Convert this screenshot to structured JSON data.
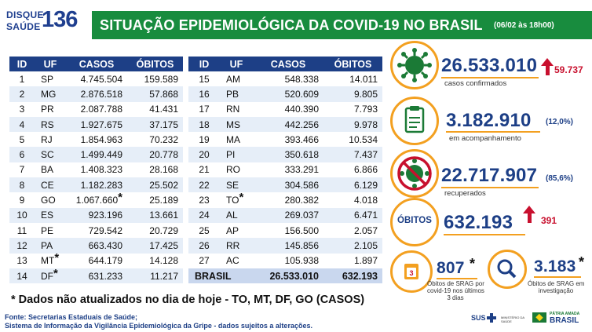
{
  "logo": {
    "line1": "DISQUE",
    "line2": "SAÚDE",
    "number": "136"
  },
  "header": {
    "title": "SITUAÇÃO EPIDEMIOLÓGICA DA COVID-19 NO BRASIL",
    "date": "(06/02 às 18h00)"
  },
  "table": {
    "headers": [
      "ID",
      "UF",
      "CASOS",
      "ÓBITOS"
    ],
    "left_rows": [
      {
        "id": "1",
        "uf": "SP",
        "casos": "4.745.504",
        "obitos": "159.589"
      },
      {
        "id": "2",
        "uf": "MG",
        "casos": "2.876.518",
        "obitos": "57.868"
      },
      {
        "id": "3",
        "uf": "PR",
        "casos": "2.087.788",
        "obitos": "41.431"
      },
      {
        "id": "4",
        "uf": "RS",
        "casos": "1.927.675",
        "obitos": "37.175"
      },
      {
        "id": "5",
        "uf": "RJ",
        "casos": "1.854.963",
        "obitos": "70.232"
      },
      {
        "id": "6",
        "uf": "SC",
        "casos": "1.499.449",
        "obitos": "20.778"
      },
      {
        "id": "7",
        "uf": "BA",
        "casos": "1.408.323",
        "obitos": "28.168"
      },
      {
        "id": "8",
        "uf": "CE",
        "casos": "1.182.283",
        "obitos": "25.502"
      },
      {
        "id": "9",
        "uf": "GO",
        "casos": "1.067.660",
        "obitos": "25.189"
      },
      {
        "id": "10",
        "uf": "ES",
        "casos": "923.196",
        "obitos": "13.661"
      },
      {
        "id": "11",
        "uf": "PE",
        "casos": "729.542",
        "obitos": "20.729"
      },
      {
        "id": "12",
        "uf": "PA",
        "casos": "663.430",
        "obitos": "17.425"
      },
      {
        "id": "13",
        "uf": "MT",
        "casos": "644.179",
        "obitos": "14.128"
      },
      {
        "id": "14",
        "uf": "DF",
        "casos": "631.233",
        "obitos": "11.217"
      }
    ],
    "right_rows": [
      {
        "id": "15",
        "uf": "AM",
        "casos": "548.338",
        "obitos": "14.011"
      },
      {
        "id": "16",
        "uf": "PB",
        "casos": "520.609",
        "obitos": "9.805"
      },
      {
        "id": "17",
        "uf": "RN",
        "casos": "440.390",
        "obitos": "7.793"
      },
      {
        "id": "18",
        "uf": "MS",
        "casos": "442.256",
        "obitos": "9.978"
      },
      {
        "id": "19",
        "uf": "MA",
        "casos": "393.466",
        "obitos": "10.534"
      },
      {
        "id": "20",
        "uf": "PI",
        "casos": "350.618",
        "obitos": "7.437"
      },
      {
        "id": "21",
        "uf": "RO",
        "casos": "333.291",
        "obitos": "6.866"
      },
      {
        "id": "22",
        "uf": "SE",
        "casos": "304.586",
        "obitos": "6.129"
      },
      {
        "id": "23",
        "uf": "TO",
        "casos": "280.382",
        "obitos": "4.018"
      },
      {
        "id": "24",
        "uf": "AL",
        "casos": "269.037",
        "obitos": "6.471"
      },
      {
        "id": "25",
        "uf": "AP",
        "casos": "156.500",
        "obitos": "2.057"
      },
      {
        "id": "26",
        "uf": "RR",
        "casos": "145.856",
        "obitos": "2.105"
      },
      {
        "id": "27",
        "uf": "AC",
        "casos": "105.938",
        "obitos": "1.897"
      }
    ],
    "total": {
      "label": "BRASIL",
      "casos": "26.533.010",
      "obitos": "632.193"
    },
    "star": "*"
  },
  "stats": {
    "confirmados": {
      "value": "26.533.010",
      "label": "casos confirmados",
      "increase": "59.737"
    },
    "acompanhamento": {
      "value": "3.182.910",
      "label": "em acompanhamento",
      "pct": "(12,0%)"
    },
    "recuperados": {
      "value": "22.717.907",
      "label": "recuperados",
      "pct": "(85,6%)"
    },
    "obitos": {
      "badge": "ÓBITOS",
      "value": "632.193",
      "increase": "391"
    },
    "srag3": {
      "value": "807",
      "star": "*",
      "label1": "Óbitos de SRAG por",
      "label2": "covid-19 nos últimos",
      "label3": "3 dias"
    },
    "srag_inv": {
      "value": "3.183",
      "star": "*",
      "label1": "Óbitos de SRAG em",
      "label2": "investigação"
    }
  },
  "footnote": "* Dados não atualizados no dia de hoje - TO, MT, DF, GO (CASOS)",
  "source": {
    "line1": "Fonte: Secretarias Estaduais de Saúde;",
    "line2": "Sistema de Informação da Vigilância Epidemiológica da Gripe - dados sujeitos a alterações."
  },
  "footer_logos": {
    "sus": "SUS",
    "ministry": "MINISTÉRIO DA SAÚDE",
    "gov_top": "PÁTRIA AMADA",
    "gov_bottom": "BRASIL"
  },
  "colors": {
    "title_bar": "#188c3e",
    "header_blue": "#1d3f86",
    "accent_orange": "#f3a020",
    "increase_red": "#c8102e"
  }
}
